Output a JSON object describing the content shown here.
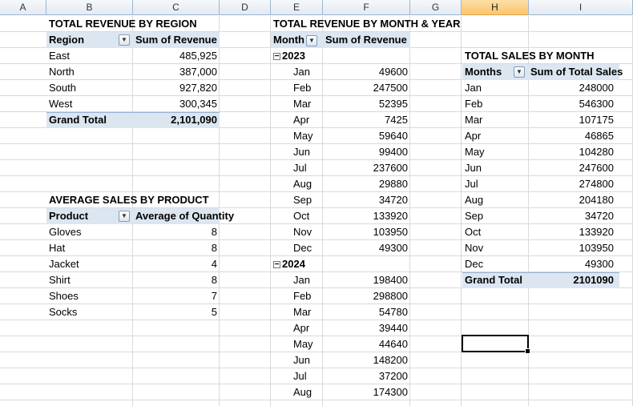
{
  "columns": [
    "A",
    "B",
    "C",
    "D",
    "E",
    "F",
    "G",
    "H",
    "I"
  ],
  "selected_column": "H",
  "region_pivot": {
    "title": "TOTAL REVENUE BY REGION",
    "row_header": "Region",
    "value_header": "Sum of Revenue",
    "rows": [
      {
        "label": "East",
        "value": "485,925"
      },
      {
        "label": "North",
        "value": "387,000"
      },
      {
        "label": "South",
        "value": "927,820"
      },
      {
        "label": "West",
        "value": "300,345"
      }
    ],
    "total_label": "Grand Total",
    "total_value": "2,101,090"
  },
  "product_pivot": {
    "title": "AVERAGE SALES BY PRODUCT",
    "row_header": "Product",
    "value_header": "Average of Quantity",
    "rows": [
      {
        "label": "Gloves",
        "value": "8"
      },
      {
        "label": "Hat",
        "value": "8"
      },
      {
        "label": "Jacket",
        "value": "4"
      },
      {
        "label": "Shirt",
        "value": "8"
      },
      {
        "label": "Shoes",
        "value": "7"
      },
      {
        "label": "Socks",
        "value": "5"
      }
    ]
  },
  "month_year_pivot": {
    "title": "TOTAL REVENUE BY MONTH & YEAR",
    "row_header": "Month",
    "value_header": "Sum of Revenue",
    "groups": [
      {
        "year": "2023",
        "toggle": "−",
        "rows": [
          {
            "label": "Jan",
            "value": "49600"
          },
          {
            "label": "Feb",
            "value": "247500"
          },
          {
            "label": "Mar",
            "value": "52395"
          },
          {
            "label": "Apr",
            "value": "7425"
          },
          {
            "label": "May",
            "value": "59640"
          },
          {
            "label": "Jun",
            "value": "99400"
          },
          {
            "label": "Jul",
            "value": "237600"
          },
          {
            "label": "Aug",
            "value": "29880"
          },
          {
            "label": "Sep",
            "value": "34720"
          },
          {
            "label": "Oct",
            "value": "133920"
          },
          {
            "label": "Nov",
            "value": "103950"
          },
          {
            "label": "Dec",
            "value": "49300"
          }
        ]
      },
      {
        "year": "2024",
        "toggle": "−",
        "rows": [
          {
            "label": "Jan",
            "value": "198400"
          },
          {
            "label": "Feb",
            "value": "298800"
          },
          {
            "label": "Mar",
            "value": "54780"
          },
          {
            "label": "Apr",
            "value": "39440"
          },
          {
            "label": "May",
            "value": "44640"
          },
          {
            "label": "Jun",
            "value": "148200"
          },
          {
            "label": "Jul",
            "value": "37200"
          },
          {
            "label": "Aug",
            "value": "174300"
          }
        ]
      }
    ]
  },
  "month_pivot": {
    "title": "TOTAL SALES BY MONTH",
    "row_header": "Months",
    "value_header": "Sum of Total Sales",
    "rows": [
      {
        "label": "Jan",
        "value": "248000"
      },
      {
        "label": "Feb",
        "value": "546300"
      },
      {
        "label": "Mar",
        "value": "107175"
      },
      {
        "label": "Apr",
        "value": "46865"
      },
      {
        "label": "May",
        "value": "104280"
      },
      {
        "label": "Jun",
        "value": "247600"
      },
      {
        "label": "Jul",
        "value": "274800"
      },
      {
        "label": "Aug",
        "value": "204180"
      },
      {
        "label": "Sep",
        "value": "34720"
      },
      {
        "label": "Oct",
        "value": "133920"
      },
      {
        "label": "Nov",
        "value": "103950"
      },
      {
        "label": "Dec",
        "value": "49300"
      }
    ],
    "total_label": "Grand Total",
    "total_value": "2101090"
  },
  "icons": {
    "dropdown": "dropdown-arrow-icon",
    "collapse": "collapse-minus-icon"
  }
}
